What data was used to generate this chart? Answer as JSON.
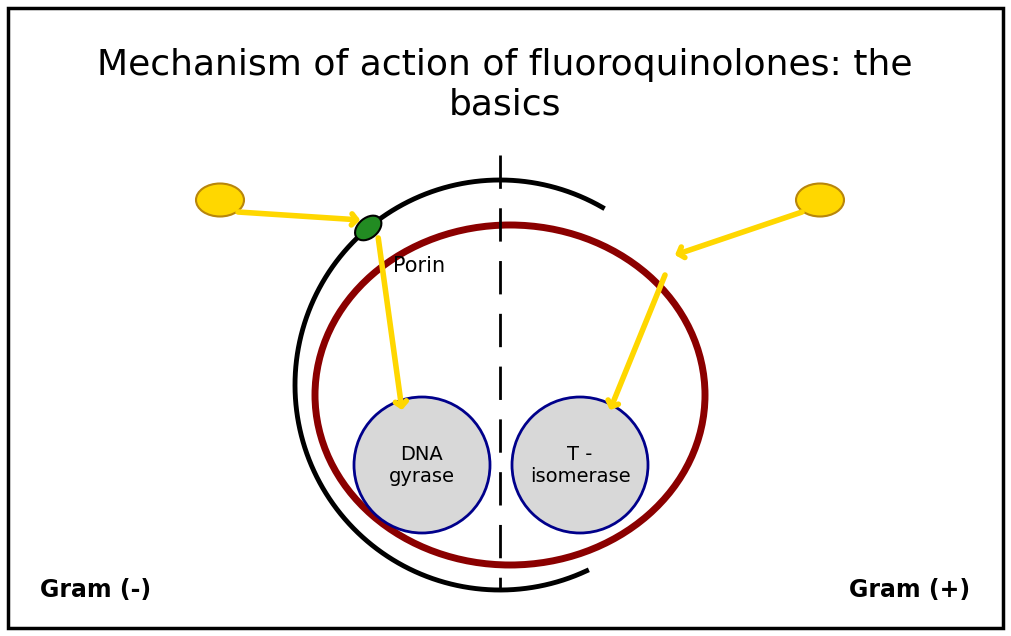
{
  "title": "Mechanism of action of fluoroquinolones: the\nbasics",
  "title_fontsize": 26,
  "background_color": "#ffffff",
  "border_color": "#000000",
  "gram_neg_label": "Gram (-)",
  "gram_pos_label": "Gram (+)",
  "porin_label": "Porin",
  "dna_gyrase_label": "DNA\ngyrase",
  "t_isomerase_label": "T -\nisomerase",
  "outer_membrane_color": "#000000",
  "inner_membrane_color": "#8b0000",
  "enzyme_fill_color": "#d8d8d8",
  "enzyme_border_color": "#00008b",
  "porin_fill_color": "#228b22",
  "porin_border_color": "#000000",
  "drug_color": "#ffd700",
  "drug_edge_color": "#b8860b",
  "arrow_color": "#ffd700",
  "dashed_line_color": "#000000",
  "label_fontsize": 15,
  "gram_label_fontsize": 17
}
